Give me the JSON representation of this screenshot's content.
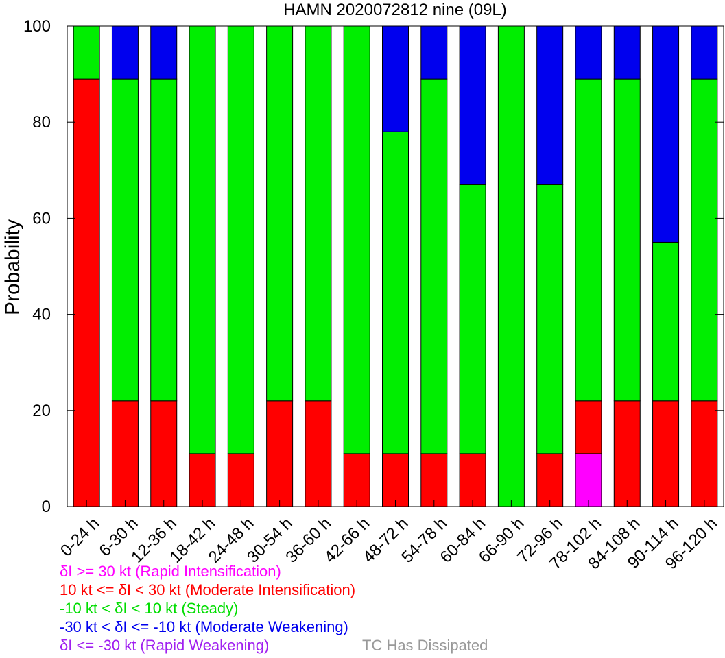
{
  "chart_data": {
    "type": "bar",
    "stacked": true,
    "title": "HAMN 2020072812 nine (09L)",
    "xlabel": "",
    "ylabel": "Probability",
    "ylim": [
      0,
      100
    ],
    "yticks": [
      0,
      20,
      40,
      60,
      80,
      100
    ],
    "grid": false,
    "categories": [
      "0-24 h",
      "6-30 h",
      "12-36 h",
      "18-42 h",
      "24-48 h",
      "30-54 h",
      "36-60 h",
      "42-66 h",
      "48-72 h",
      "54-78 h",
      "60-84 h",
      "66-90 h",
      "72-96 h",
      "78-102 h",
      "84-108 h",
      "90-114 h",
      "96-120 h"
    ],
    "series": [
      {
        "name": "δI >= 30 kt (Rapid Intensification)",
        "color": "#ff00ff",
        "values": [
          0,
          0,
          0,
          0,
          0,
          0,
          0,
          0,
          0,
          0,
          0,
          0,
          0,
          11,
          0,
          0,
          0
        ]
      },
      {
        "name": "10 kt <= δI < 30 kt (Moderate Intensification)",
        "color": "#ff0000",
        "values": [
          89,
          22,
          22,
          11,
          11,
          22,
          22,
          11,
          11,
          11,
          11,
          0,
          11,
          11,
          22,
          22,
          22
        ]
      },
      {
        "name": "-10 kt < δI < 10 kt (Steady)",
        "color": "#00ee00",
        "values": [
          11,
          67,
          67,
          89,
          89,
          78,
          78,
          89,
          67,
          78,
          56,
          100,
          56,
          67,
          67,
          33,
          67
        ]
      },
      {
        "name": "-30 kt < δI <= -10 kt (Moderate Weakening)",
        "color": "#0000ee",
        "values": [
          0,
          11,
          11,
          0,
          0,
          0,
          0,
          0,
          22,
          11,
          33,
          0,
          33,
          11,
          11,
          45,
          11
        ]
      },
      {
        "name": "δI <= -30 kt (Rapid Weakening)",
        "color": "#a020f0",
        "values": [
          0,
          0,
          0,
          0,
          0,
          0,
          0,
          0,
          0,
          0,
          0,
          0,
          0,
          0,
          0,
          0,
          0
        ]
      }
    ],
    "legend": {
      "placement": "bottom-left",
      "entries": [
        {
          "text": "δI >= 30 kt (Rapid Intensification)",
          "color": "#ff00ff"
        },
        {
          "text": "10 kt <= δI < 30 kt (Moderate Intensification)",
          "color": "#ff0000"
        },
        {
          "text": "-10 kt < δI < 10 kt (Steady)",
          "color": "#00dd00"
        },
        {
          "text": "-30 kt < δI <= -10 kt (Moderate Weakening)",
          "color": "#0000ee"
        },
        {
          "text": "δI <= -30 kt (Rapid Weakening)",
          "color": "#a020f0"
        }
      ],
      "dissipated": {
        "text": "TC Has Dissipated",
        "color": "#999999"
      }
    }
  }
}
